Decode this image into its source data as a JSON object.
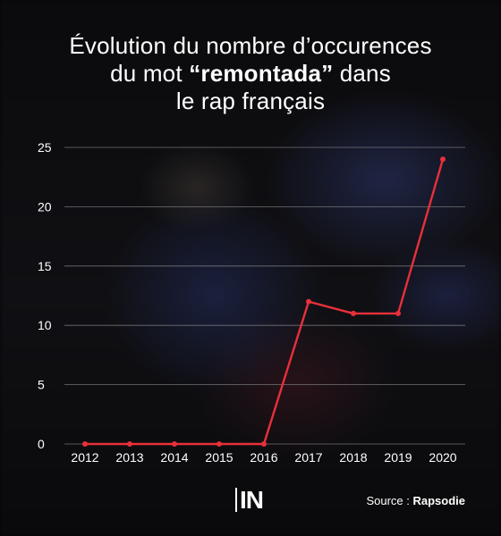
{
  "title": {
    "line1": "Évolution du nombre d’occurences",
    "line2_before": "du mot ",
    "line2_strong": "“remontada”",
    "line2_after": " dans",
    "line3": "le rap français"
  },
  "logo_text": "IN",
  "source": {
    "label": "Source : ",
    "value": "Rapsodie"
  },
  "colors": {
    "line": "#e8303a",
    "grid": "#9a9a9a",
    "text": "#ffffff"
  },
  "chart_data": {
    "type": "line",
    "categories": [
      "2012",
      "2013",
      "2014",
      "2015",
      "2016",
      "2017",
      "2018",
      "2019",
      "2020"
    ],
    "values": [
      0,
      0,
      0,
      0,
      0,
      12,
      11,
      11,
      24
    ],
    "xlabel": "",
    "ylabel": "",
    "ylim": [
      0,
      25
    ],
    "yticks": [
      0,
      5,
      10,
      15,
      20,
      25
    ],
    "grid": true,
    "legend": "none"
  }
}
